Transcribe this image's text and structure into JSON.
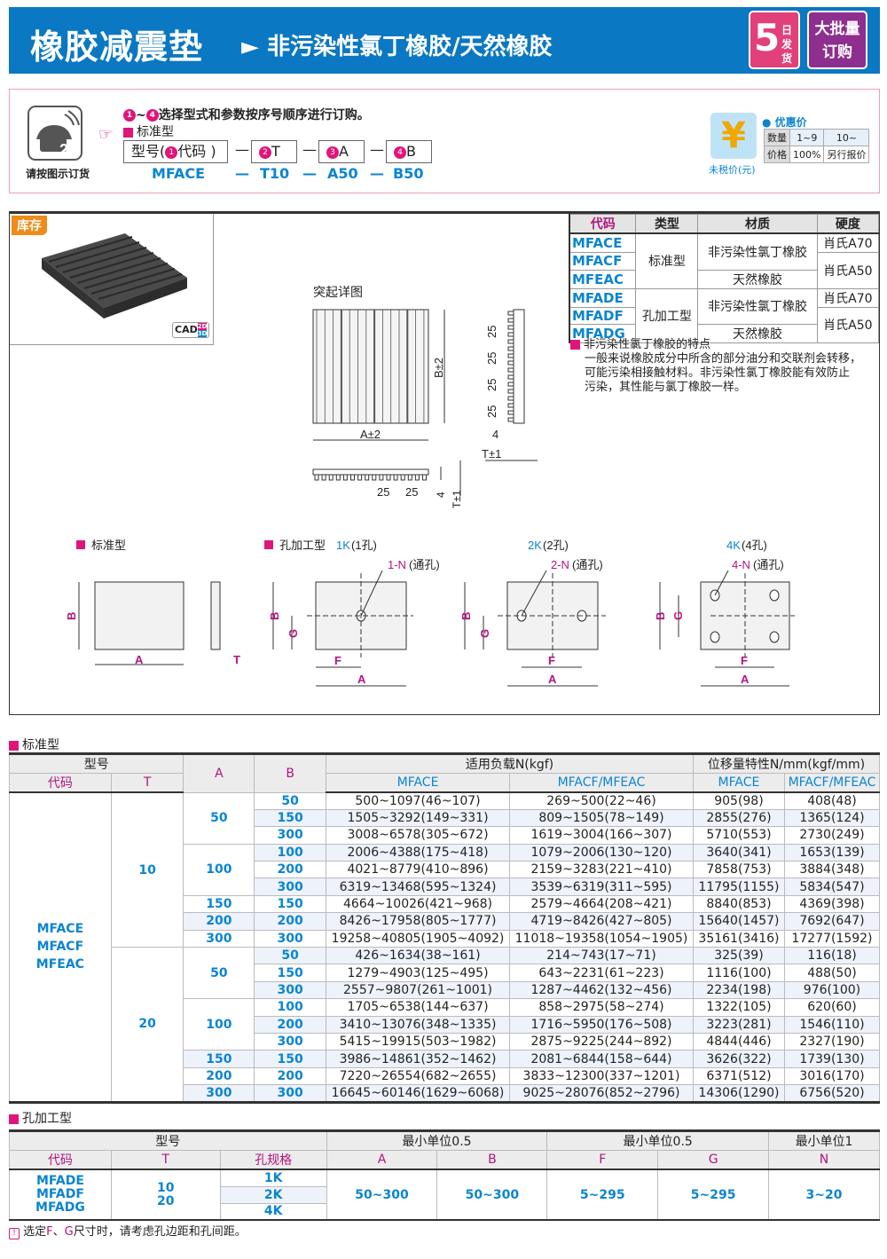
{
  "header": {
    "title": "橡胶减震垫",
    "arrow": "►",
    "subtitle": "非污染性氯丁橡胶/天然橡胶",
    "badge_days_num": "5",
    "badge_days_text": "日发货",
    "badge_bulk_line1": "大批量",
    "badge_bulk_line2": "订购",
    "colors": {
      "bar": "#0a78c2",
      "badge_days": "#e2407a",
      "badge_bulk": "#8e2e8f"
    }
  },
  "order": {
    "phone_caption": "请按图示订货",
    "step_range_start": "1",
    "step_range_sep": "~",
    "step_range_end": "4",
    "instruction": "选择型式和参数按序号顺序进行订购。",
    "type_label": "标准型",
    "boxes": [
      {
        "num": "1",
        "pre": "型号(",
        "label": "代码 )"
      },
      {
        "num": "2",
        "label": "T"
      },
      {
        "num": "3",
        "label": "A"
      },
      {
        "num": "4",
        "label": "B"
      }
    ],
    "dash": "—",
    "codes": [
      "MFACE",
      "T10",
      "A50",
      "B50"
    ],
    "price": {
      "icon": "yen-icon",
      "caption": "未税价(元)",
      "title": "优惠价",
      "qty_label": "数量",
      "qty1": "1~9",
      "qty2": "10~",
      "price_label": "价格",
      "price1": "100%",
      "price2": "另行报价"
    }
  },
  "product": {
    "stock_label": "库存",
    "cad": "CAD",
    "cad2d": "2D",
    "cad3d": "3D"
  },
  "materials": {
    "headers": [
      "代码",
      "类型",
      "材质",
      "硬度"
    ],
    "codes": [
      "MFACE",
      "MFACF",
      "MFEAC",
      "MFADE",
      "MFADF",
      "MFADG"
    ],
    "types": [
      "标准型",
      "孔加工型"
    ],
    "mat_cr": "非污染性氯丁橡胶",
    "mat_nr": "天然橡胶",
    "h70": "肖氏A70",
    "h50": "肖氏A50"
  },
  "note": {
    "title": "非污染性氯丁橡胶的特点",
    "lines": [
      "一般来说橡胶成分中所含的部分油分和交联剂会转移，",
      "可能污染相接触材料。非污染性氯丁橡胶能有效防止",
      "污染，其性能与氯丁橡胶一样。"
    ]
  },
  "drawing": {
    "detail_title": "突起详图",
    "a_tol": "A±2",
    "b_tol": "B±2",
    "t_tol": "T±1",
    "pitch": "25",
    "rib": "4",
    "std_label": "标准型",
    "hole_label": "孔加工型",
    "k1": "1K",
    "k1s": "(1孔)",
    "k2": "2K",
    "k2s": "(2孔)",
    "k4": "4K",
    "k4s": "(4孔)",
    "n1": "1-N",
    "n2": "2-N",
    "n4": "4-N",
    "through": "(通孔)",
    "A": "A",
    "B": "B",
    "F": "F",
    "G": "G",
    "T": "T"
  },
  "std_table": {
    "section": "标准型",
    "h_model": "型号",
    "h_code": "代码",
    "h_T": "T",
    "h_A": "A",
    "h_B": "B",
    "h_load": "适用负载N(kgf)",
    "h_disp": "位移量特性N/mm(kgf/mm)",
    "h_mface": "MFACE",
    "h_mfacf": "MFACF/MFEAC",
    "codes": [
      "MFACE",
      "MFACF",
      "MFEAC"
    ],
    "rows": [
      [
        "10",
        "50",
        "50",
        "500~1097(46~107)",
        "269~500(22~46)",
        "905(98)",
        "408(48)"
      ],
      [
        "10",
        "50",
        "150",
        "1505~3292(149~331)",
        "809~1505(78~149)",
        "2855(276)",
        "1365(124)"
      ],
      [
        "10",
        "50",
        "300",
        "3008~6578(305~672)",
        "1619~3004(166~307)",
        "5710(553)",
        "2730(249)"
      ],
      [
        "10",
        "100",
        "100",
        "2006~4388(175~418)",
        "1079~2006(130~120)",
        "3640(341)",
        "1653(139)"
      ],
      [
        "10",
        "100",
        "200",
        "4021~8779(410~896)",
        "2159~3283(221~410)",
        "7858(753)",
        "3884(348)"
      ],
      [
        "10",
        "100",
        "300",
        "6319~13468(595~1324)",
        "3539~6319(311~595)",
        "11795(1155)",
        "5834(547)"
      ],
      [
        "10",
        "150",
        "150",
        "4664~10026(421~968)",
        "2579~4664(208~421)",
        "8840(853)",
        "4369(398)"
      ],
      [
        "10",
        "200",
        "200",
        "8426~17958(805~1777)",
        "4719~8426(427~805)",
        "15640(1457)",
        "7692(647)"
      ],
      [
        "10",
        "300",
        "300",
        "19258~40805(1905~4092)",
        "11018~19358(1054~1905)",
        "35161(3416)",
        "17277(1592)"
      ],
      [
        "20",
        "50",
        "50",
        "426~1634(38~161)",
        "214~743(17~71)",
        "325(39)",
        "116(18)"
      ],
      [
        "20",
        "50",
        "150",
        "1279~4903(125~495)",
        "643~2231(61~223)",
        "1116(100)",
        "488(50)"
      ],
      [
        "20",
        "50",
        "300",
        "2557~9807(261~1001)",
        "1287~4462(132~456)",
        "2234(198)",
        "976(100)"
      ],
      [
        "20",
        "100",
        "100",
        "1705~6538(144~637)",
        "858~2975(58~274)",
        "1322(105)",
        "620(60)"
      ],
      [
        "20",
        "100",
        "200",
        "3410~13076(348~1335)",
        "1716~5950(176~508)",
        "3223(281)",
        "1546(110)"
      ],
      [
        "20",
        "100",
        "300",
        "5415~19915(503~1982)",
        "2875~9225(244~892)",
        "4844(446)",
        "2327(190)"
      ],
      [
        "20",
        "150",
        "150",
        "3986~14861(352~1462)",
        "2081~6844(158~644)",
        "3626(322)",
        "1739(130)"
      ],
      [
        "20",
        "200",
        "200",
        "7220~26554(682~2655)",
        "3833~12300(337~1201)",
        "6371(512)",
        "3016(170)"
      ],
      [
        "20",
        "300",
        "300",
        "16645~60146(1629~6068)",
        "9025~28076(852~2796)",
        "14306(1290)",
        "6756(520)"
      ]
    ]
  },
  "hole_table": {
    "section": "孔加工型",
    "h_model": "型号",
    "h_unit05a": "最小单位0.5",
    "h_unit05b": "最小单位0.5",
    "h_unit1": "最小单位1",
    "h_code": "代码",
    "h_T": "T",
    "h_spec": "孔规格",
    "h_A": "A",
    "h_B": "B",
    "h_F": "F",
    "h_G": "G",
    "h_N": "N",
    "codes": [
      "MFADE",
      "MFADF",
      "MFADG"
    ],
    "T": [
      "10",
      "20"
    ],
    "specs": [
      "1K",
      "2K",
      "4K"
    ],
    "A": "50~300",
    "B": "50~300",
    "F": "5~295",
    "G": "5~295",
    "N": "3~20"
  },
  "footnote": {
    "icon": "caution-icon",
    "pre": "选定",
    "F": "F",
    "sep": "、",
    "G": "G",
    "post": "尺寸时，请考虑孔边距和孔间距。"
  }
}
